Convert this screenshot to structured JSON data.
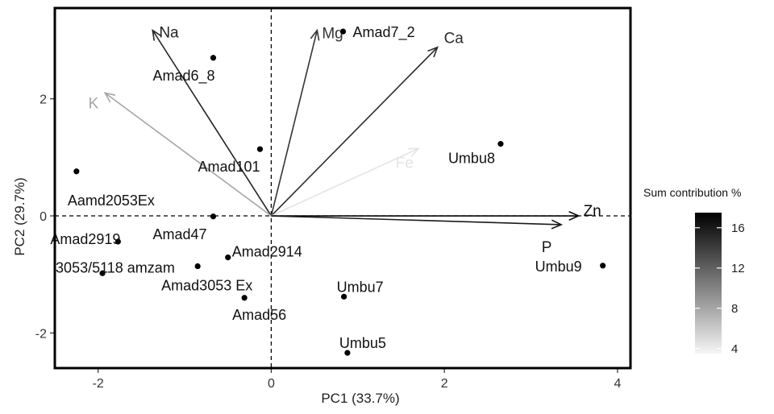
{
  "chart_data": {
    "type": "scatter",
    "subtype": "pca-biplot",
    "xlabel": "PC1 (33.7%)",
    "ylabel": "PC2 (29.7%)",
    "xlim": [
      -2.5,
      4.15
    ],
    "ylim": [
      -2.6,
      3.55
    ],
    "x_ticks": [
      -2,
      0,
      2,
      4
    ],
    "y_ticks": [
      -2,
      0,
      2
    ],
    "points": [
      {
        "label": "Amad7_2",
        "x": 0.83,
        "y": 3.15
      },
      {
        "label": "Amad6_8",
        "x": -0.67,
        "y": 2.7
      },
      {
        "label": "Umbu8",
        "x": 2.65,
        "y": 1.23
      },
      {
        "label": "Amad101",
        "x": -0.13,
        "y": 1.14
      },
      {
        "label": "Aamd2053Ex",
        "x": -2.25,
        "y": 0.76
      },
      {
        "label": "Amad47",
        "x": -0.67,
        "y": -0.01
      },
      {
        "label": "Amad2919",
        "x": -1.77,
        "y": -0.44
      },
      {
        "label": "Amad2914",
        "x": -0.5,
        "y": -0.71
      },
      {
        "label": "3053/5118 amzam",
        "x": -1.95,
        "y": -0.98
      },
      {
        "label": "Amad3053 Ex",
        "x": -0.85,
        "y": -0.86
      },
      {
        "label": "Umbu9",
        "x": 3.83,
        "y": -0.85
      },
      {
        "label": "Umbu7",
        "x": 0.84,
        "y": -1.38
      },
      {
        "label": "Amad56",
        "x": -0.31,
        "y": -1.4
      },
      {
        "label": "Umbu5",
        "x": 0.88,
        "y": -2.34
      }
    ],
    "vectors": [
      {
        "name": "Na",
        "x": -1.37,
        "y": 3.17,
        "contribution": 15.5
      },
      {
        "name": "Mg",
        "x": 0.53,
        "y": 3.17,
        "contribution": 14.5
      },
      {
        "name": "Ca",
        "x": 1.92,
        "y": 2.88,
        "contribution": 15.0
      },
      {
        "name": "K",
        "x": -1.92,
        "y": 2.1,
        "contribution": 8.0
      },
      {
        "name": "Fe",
        "x": 1.7,
        "y": 1.15,
        "contribution": 4.5
      },
      {
        "name": "Zn",
        "x": 3.55,
        "y": 0.0,
        "contribution": 17.0
      },
      {
        "name": "P",
        "x": 3.35,
        "y": -0.15,
        "contribution": 16.0
      }
    ],
    "legend": {
      "title": "Sum contribution %",
      "min": 3.5,
      "max": 17.5,
      "ticks": [
        4,
        8,
        12,
        16
      ],
      "placement": "right",
      "color_low": "#f5f5f5",
      "color_high": "#000000"
    },
    "grid": false
  }
}
